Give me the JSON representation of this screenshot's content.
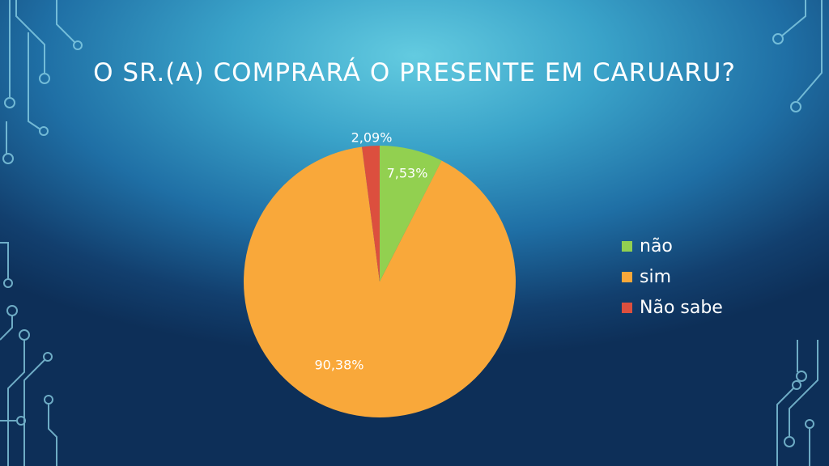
{
  "slide": {
    "title": "O SR.(A) COMPRARÁ O PRESENTE EM CARUARU?"
  },
  "chart_data": {
    "type": "pie",
    "categories": [
      "não",
      "sim",
      "Não sabe"
    ],
    "values": [
      7.53,
      90.38,
      2.09
    ],
    "data_labels": [
      "7,53%",
      "90,38%",
      "2,09%"
    ],
    "colors": [
      "#92d050",
      "#f9a83a",
      "#dc4f3e"
    ],
    "legend_position": "right"
  }
}
